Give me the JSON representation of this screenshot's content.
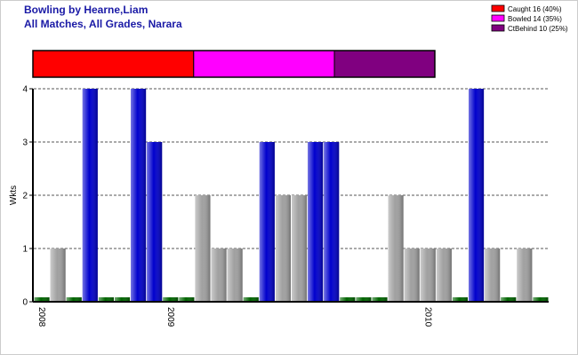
{
  "chart_data": {
    "type": "bar",
    "title": "Bowling by Hearne,Liam",
    "subtitle": "All Matches, All Grades, Narara",
    "y_label": "Wkts",
    "categories": [
      "2008",
      null,
      null,
      null,
      null,
      null,
      null,
      null,
      "2009",
      null,
      null,
      null,
      null,
      null,
      null,
      null,
      null,
      null,
      null,
      null,
      null,
      null,
      null,
      null,
      "2010",
      null,
      null,
      null,
      null,
      null,
      null,
      null
    ],
    "values": [
      0,
      1,
      0,
      4,
      0,
      0,
      4,
      3,
      0,
      0,
      2,
      1,
      1,
      0,
      3,
      2,
      2,
      3,
      3,
      0,
      0,
      0,
      2,
      1,
      1,
      1,
      0,
      4,
      1,
      0,
      1,
      0
    ],
    "colors": [
      "#006400",
      "#a0a0a0",
      "#006400",
      "#0000cc",
      "#006400",
      "#006400",
      "#0000cc",
      "#0000cc",
      "#006400",
      "#006400",
      "#a0a0a0",
      "#a0a0a0",
      "#a0a0a0",
      "#006400",
      "#0000cc",
      "#a0a0a0",
      "#a0a0a0",
      "#0000cc",
      "#0000cc",
      "#006400",
      "#006400",
      "#006400",
      "#a0a0a0",
      "#a0a0a0",
      "#a0a0a0",
      "#a0a0a0",
      "#006400",
      "#0000cc",
      "#a0a0a0",
      "#006400",
      "#a0a0a0",
      "#006400"
    ],
    "ylim": [
      0,
      4
    ],
    "yticks": [
      0,
      1,
      2,
      3,
      4
    ],
    "grid": true,
    "legend_position": "top-right",
    "breakdown": [
      {
        "name": "Caught",
        "count": 16,
        "percent": 40,
        "color": "#ff0000",
        "label": "Caught 16 (40%)"
      },
      {
        "name": "Bowled",
        "count": 14,
        "percent": 35,
        "color": "#ff00ff",
        "label": "Bowled 14 (35%)"
      },
      {
        "name": "CtBehind",
        "count": 10,
        "percent": 25,
        "color": "#800080",
        "label": "CtBehind 10 (25%)"
      }
    ]
  }
}
